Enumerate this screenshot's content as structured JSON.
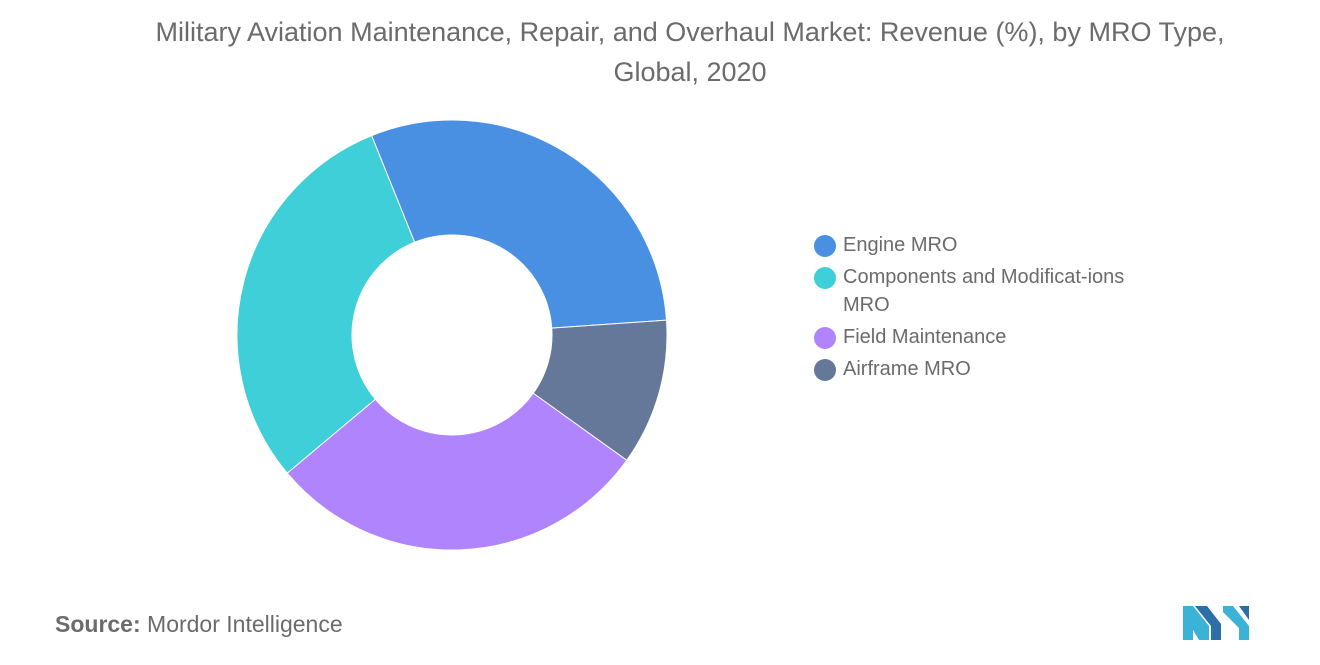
{
  "chart_data": {
    "type": "pie",
    "title": "Military Aviation Maintenance, Repair, and Overhaul Market: Revenue (%), by MRO Type, Global, 2020",
    "donut": true,
    "legend_position": "right",
    "series": [
      {
        "name": "Engine MRO",
        "value": 30,
        "color": "#4a90e2"
      },
      {
        "name": "Components and Modificat-ions MRO",
        "value": 30,
        "color": "#3ecfd9"
      },
      {
        "name": "Field Maintenance",
        "value": 29,
        "color": "#b084fc"
      },
      {
        "name": "Airframe MRO",
        "value": 11,
        "color": "#657899"
      }
    ]
  },
  "source": {
    "label": "Source:",
    "value": "Mordor Intelligence"
  },
  "logo": {
    "icon": "mordor-intelligence-logo",
    "colors": [
      "#3bb3d6",
      "#2b6ea8"
    ]
  }
}
